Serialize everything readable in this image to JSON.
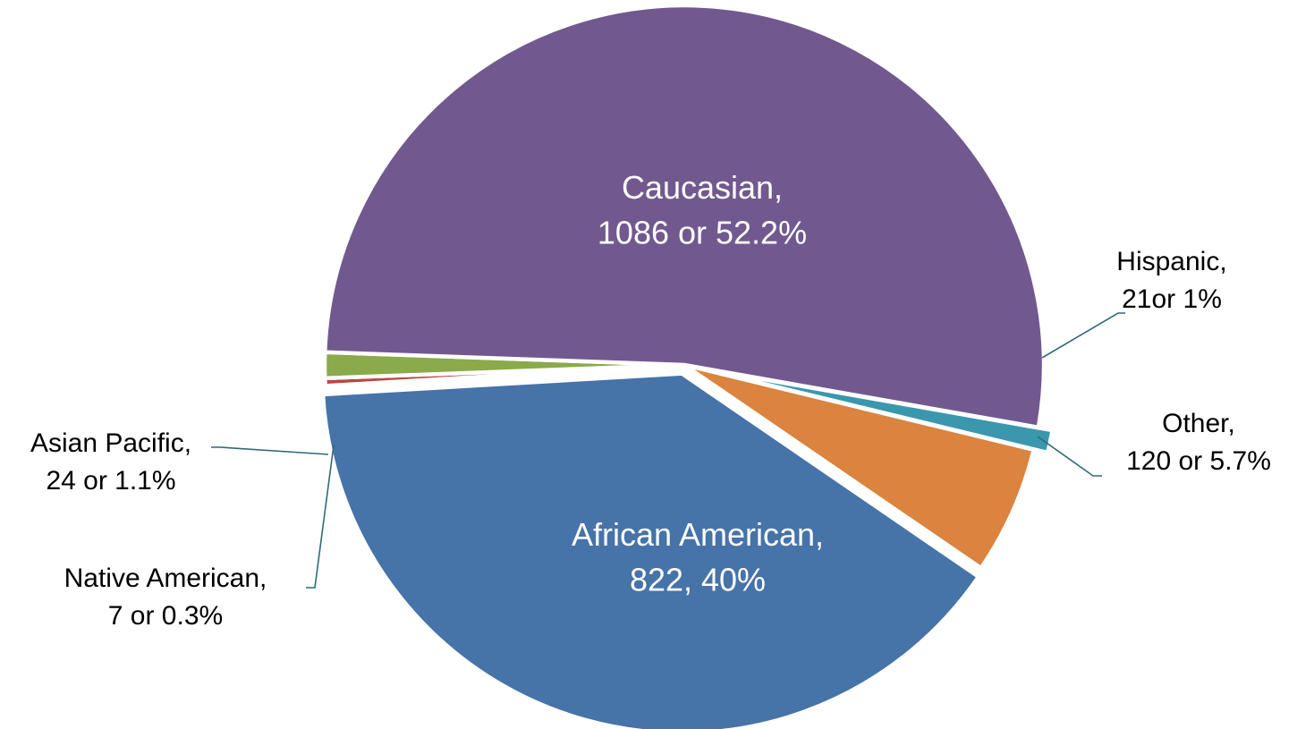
{
  "chart_data": {
    "type": "pie",
    "slices": [
      {
        "category": "Hispanic",
        "value": 21,
        "percent": 1,
        "label_lines": [
          "Hispanic,",
          "21or 1%"
        ],
        "color": "#3A97AE"
      },
      {
        "category": "Other",
        "value": 120,
        "percent": 5.7,
        "label_lines": [
          "Other,",
          "120 or 5.7%"
        ],
        "color": "#DA843F"
      },
      {
        "category": "African American",
        "value": 822,
        "percent": 40,
        "label_lines": [
          "African American,",
          "822, 40%"
        ],
        "color": "#4673A8"
      },
      {
        "category": "Native American",
        "value": 7,
        "percent": 0.3,
        "label_lines": [
          "Native American,",
          "7 or 0.3%"
        ],
        "color": "#B94743"
      },
      {
        "category": "Asian Pacific",
        "value": 24,
        "percent": 1.1,
        "label_lines": [
          "Asian Pacific,",
          "24 or 1.1%"
        ],
        "color": "#8AAA4B"
      },
      {
        "category": "Caucasian",
        "value": 1086,
        "percent": 52.2,
        "label_lines": [
          "Caucasian,",
          "1086 or 52.2%"
        ],
        "color": "#71598F"
      }
    ]
  }
}
